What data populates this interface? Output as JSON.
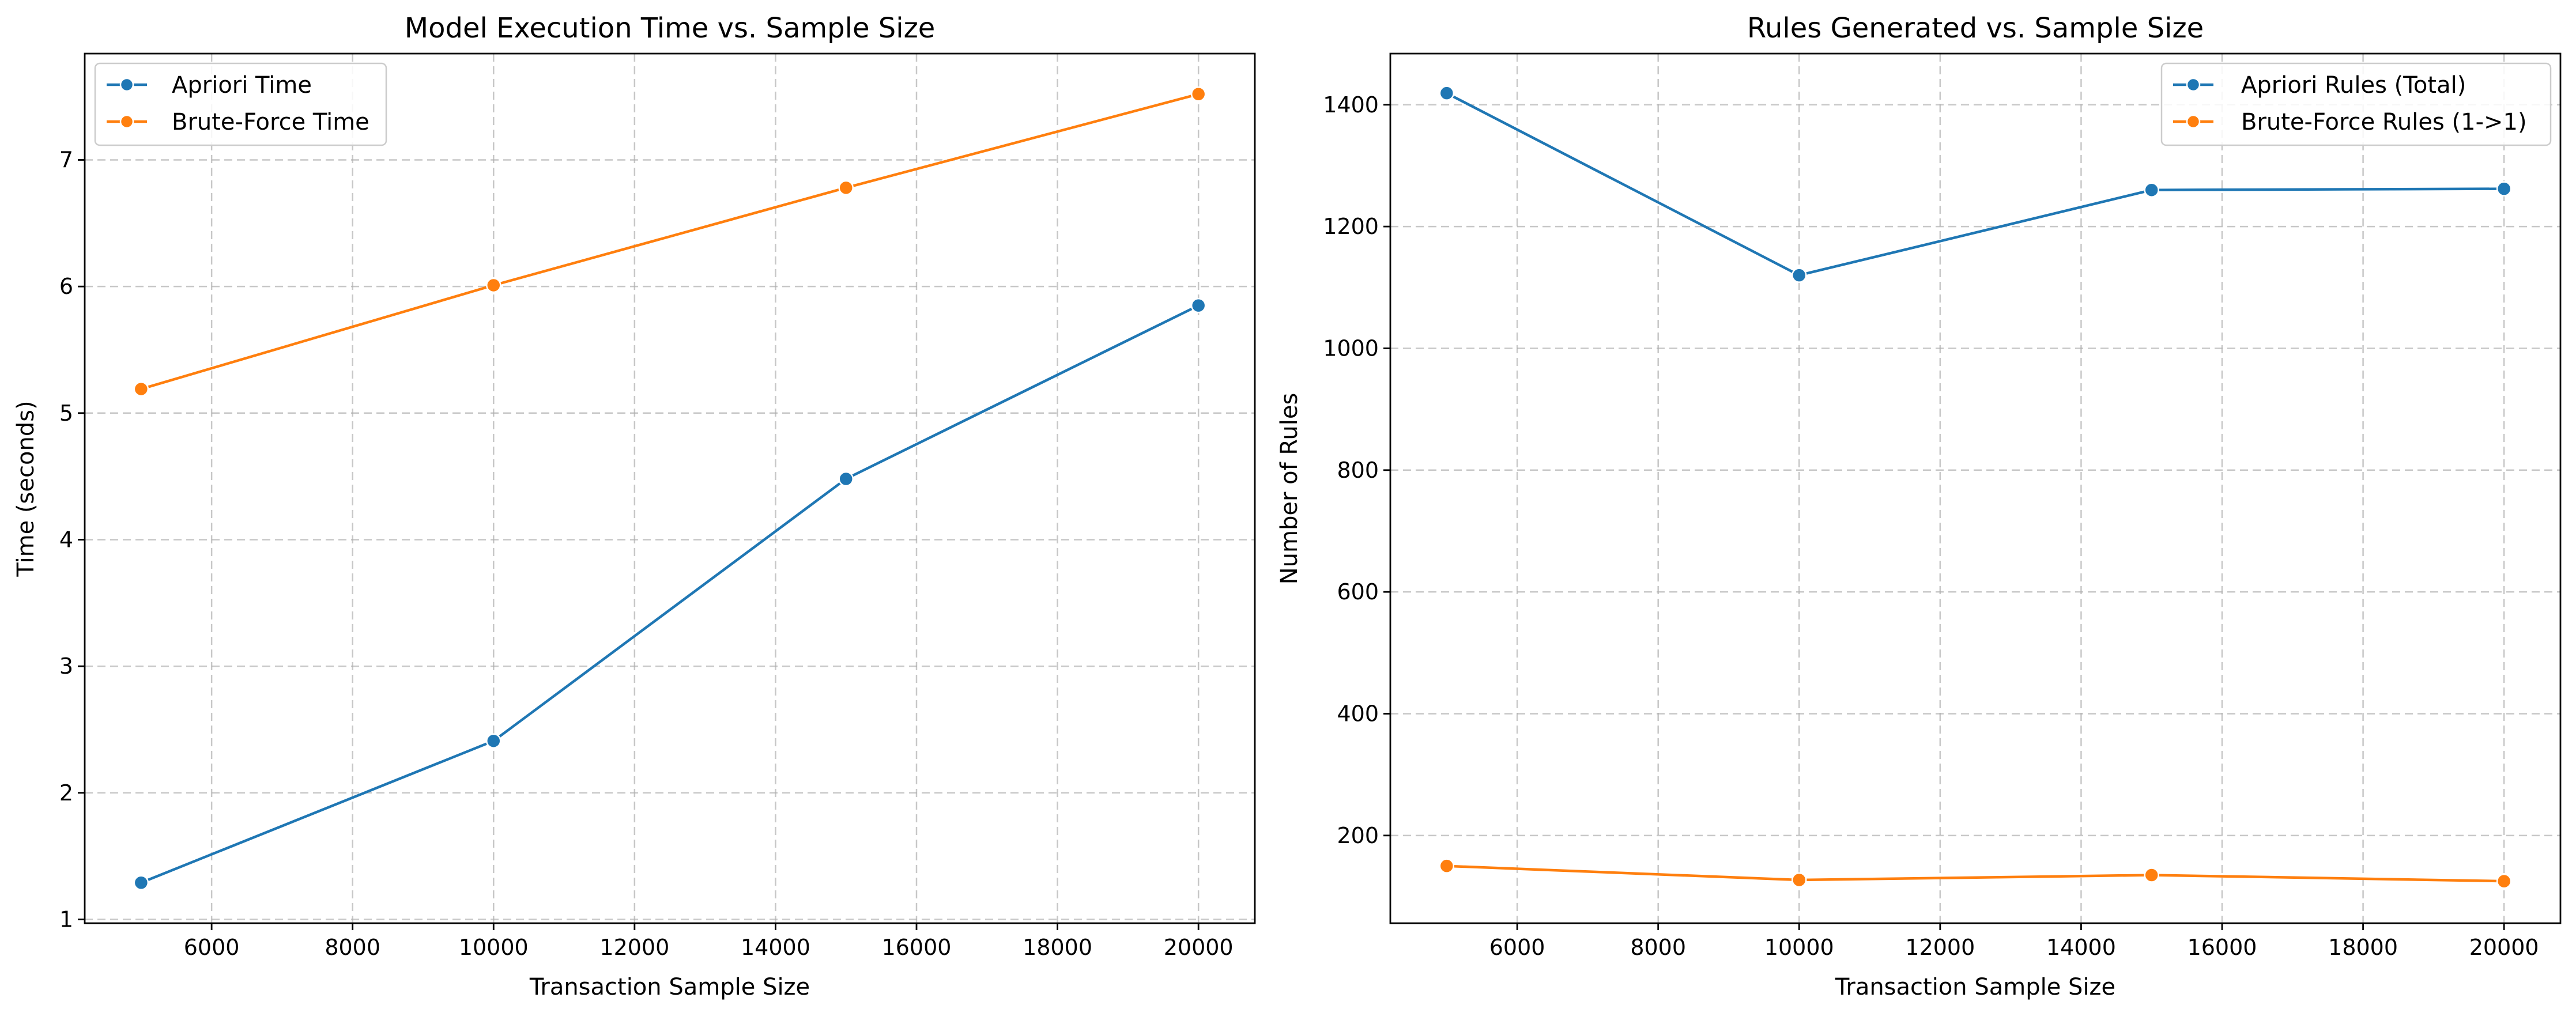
{
  "chart_data": [
    {
      "type": "line",
      "title": "Model Execution Time vs. Sample Size",
      "xlabel": "Transaction Sample Size",
      "ylabel": "Time (seconds)",
      "x": [
        5000,
        10000,
        15000,
        20000
      ],
      "xlim": [
        4200,
        20800
      ],
      "ylim": [
        0.97,
        7.84
      ],
      "xticks": [
        6000,
        8000,
        10000,
        12000,
        14000,
        16000,
        18000,
        20000
      ],
      "yticks": [
        1,
        2,
        3,
        4,
        5,
        6,
        7
      ],
      "grid": true,
      "legend_position": "upper-left",
      "series": [
        {
          "name": "Apriori Time",
          "color": "#1f77b4",
          "values": [
            1.29,
            2.41,
            4.48,
            5.85
          ]
        },
        {
          "name": "Brute-Force Time",
          "color": "#ff7f0e",
          "values": [
            5.19,
            6.01,
            6.78,
            7.52
          ]
        }
      ]
    },
    {
      "type": "line",
      "title": "Rules Generated vs. Sample Size",
      "xlabel": "Transaction Sample Size",
      "ylabel": "Number of Rules",
      "x": [
        5000,
        10000,
        15000,
        20000
      ],
      "xlim": [
        4200,
        20800
      ],
      "ylim": [
        56,
        1484
      ],
      "xticks": [
        6000,
        8000,
        10000,
        12000,
        14000,
        16000,
        18000,
        20000
      ],
      "yticks": [
        200,
        400,
        600,
        800,
        1000,
        1200,
        1400
      ],
      "grid": true,
      "legend_position": "upper-right",
      "series": [
        {
          "name": "Apriori Rules (Total)",
          "color": "#1f77b4",
          "values": [
            1419,
            1120,
            1260,
            1262
          ]
        },
        {
          "name": "Brute-Force Rules (1->1)",
          "color": "#ff7f0e",
          "values": [
            150,
            127,
            135,
            125
          ]
        }
      ]
    }
  ]
}
